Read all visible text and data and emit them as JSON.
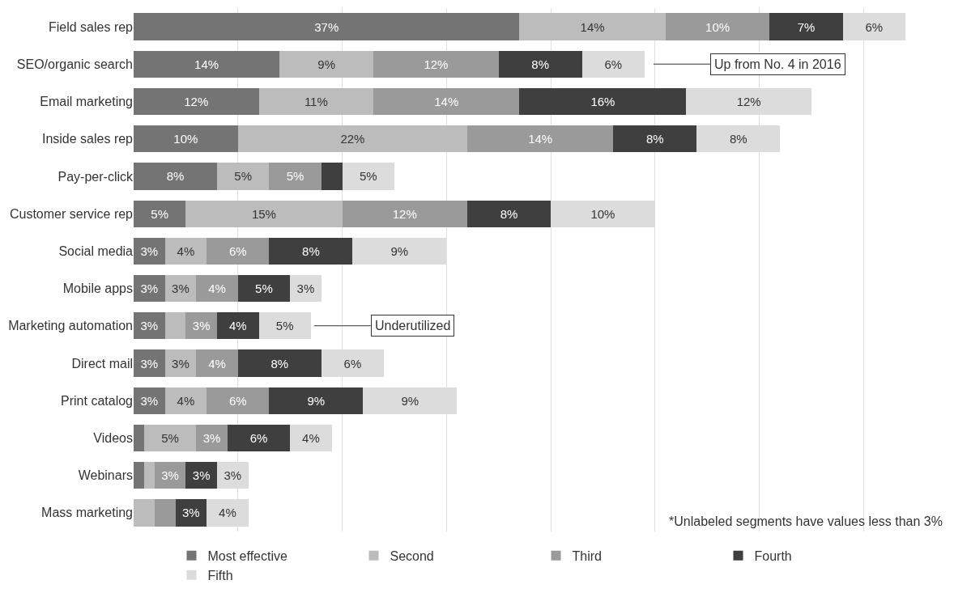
{
  "chart_data": {
    "type": "bar",
    "orientation": "horizontal",
    "stacked": true,
    "categories": [
      "Field sales rep",
      "SEO/organic search",
      "Email marketing",
      "Inside sales rep",
      "Pay-per-click",
      "Customer service rep",
      "Social media",
      "Mobile apps",
      "Marketing automation",
      "Direct mail",
      "Print catalog",
      "Videos",
      "Webinars",
      "Mass marketing"
    ],
    "series": [
      {
        "name": "Most effective",
        "color": "#747474",
        "values": [
          37,
          14,
          12,
          10,
          8,
          5,
          3,
          3,
          3,
          3,
          3,
          1,
          1,
          0
        ],
        "value_labels": [
          "37%",
          "14%",
          "12%",
          "10%",
          "8%",
          "5%",
          "3%",
          "3%",
          "3%",
          "3%",
          "3%",
          null,
          null,
          null
        ]
      },
      {
        "name": "Second",
        "color": "#bcbcbc",
        "values": [
          14,
          9,
          11,
          22,
          5,
          15,
          4,
          3,
          2,
          3,
          4,
          5,
          1,
          2
        ],
        "value_labels": [
          "14%",
          "9%",
          "11%",
          "22%",
          "5%",
          "15%",
          "4%",
          "3%",
          null,
          "3%",
          "4%",
          "5%",
          null,
          null
        ]
      },
      {
        "name": "Third",
        "color": "#9a9a9a",
        "values": [
          10,
          12,
          14,
          14,
          5,
          12,
          6,
          4,
          3,
          4,
          6,
          3,
          3,
          2
        ],
        "value_labels": [
          "10%",
          "12%",
          "14%",
          "14%",
          "5%",
          "12%",
          "6%",
          "4%",
          "3%",
          "4%",
          "6%",
          "3%",
          "3%",
          null
        ]
      },
      {
        "name": "Fourth",
        "color": "#3f3f3f",
        "values": [
          7,
          8,
          16,
          8,
          2,
          8,
          8,
          5,
          4,
          8,
          9,
          6,
          3,
          3
        ],
        "value_labels": [
          "7%",
          "8%",
          "16%",
          "8%",
          null,
          "8%",
          "8%",
          "5%",
          "4%",
          "8%",
          "9%",
          "6%",
          "3%",
          "3%"
        ]
      },
      {
        "name": "Fifth",
        "color": "#dcdcdc",
        "values": [
          6,
          6,
          12,
          8,
          5,
          10,
          9,
          3,
          5,
          6,
          9,
          4,
          3,
          4
        ],
        "value_labels": [
          "6%",
          "6%",
          "12%",
          "8%",
          "5%",
          "10%",
          "9%",
          "3%",
          "5%",
          "6%",
          "9%",
          "4%",
          "3%",
          "4%"
        ]
      }
    ],
    "tick_labels": "y",
    "grid": "x",
    "legend": "bottom",
    "annotations": [
      "Up from No. 4 in 2016",
      "Underutilized",
      "*Unlabeled segments have values less than 3%"
    ]
  }
}
